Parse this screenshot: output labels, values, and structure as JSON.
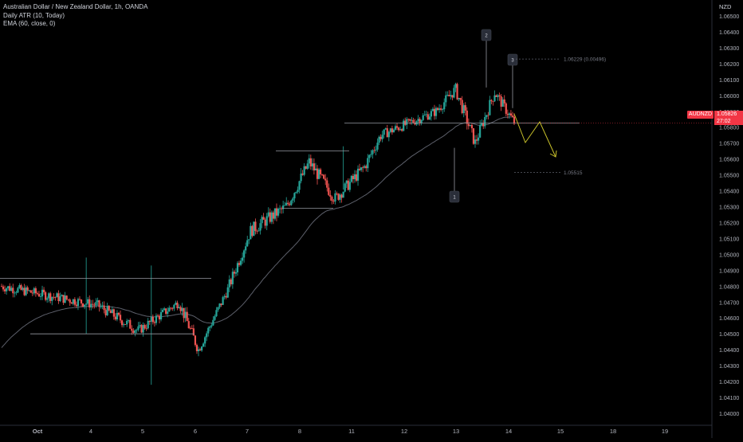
{
  "legend": {
    "title": "Australian Dollar / New Zealand Dollar, 1h, OANDA",
    "indicator_1": "Daily ATR (10, Today)",
    "indicator_2": "EMA (60, close, 0)"
  },
  "price_axis": {
    "currency": "NZD",
    "symbol": "AUDNZD",
    "last_price": "1.05826",
    "countdown": "27:02"
  },
  "annotations": {
    "target_high": "1.06229 (0.00496)",
    "target_low": "1.05515",
    "wave_labels": [
      "1",
      "2",
      "3"
    ]
  },
  "colors": {
    "bull": "#26a69a",
    "bear": "#ef5350",
    "ema": "#5d606b",
    "projection": "#c8c12a",
    "badge": "#f23645",
    "background": "#000000"
  },
  "chart_data": {
    "type": "candlestick",
    "title": "Australian Dollar / New Zealand Dollar, 1h, OANDA",
    "y_ticks": [
      "1.06500",
      "1.06400",
      "1.06300",
      "1.06200",
      "1.06100",
      "1.06000",
      "1.05900",
      "1.05800",
      "1.05700",
      "1.05600",
      "1.05500",
      "1.05400",
      "1.05300",
      "1.05200",
      "1.05100",
      "1.05000",
      "1.04900",
      "1.04800",
      "1.04700",
      "1.04600",
      "1.04500",
      "1.04400",
      "1.04300",
      "1.04200",
      "1.04100",
      "1.04000"
    ],
    "ylim": [
      1.0396,
      1.0655
    ],
    "x_ticks": [
      "Oct",
      "4",
      "5",
      "6",
      "7",
      "8",
      "11",
      "12",
      "13",
      "14",
      "15",
      "18",
      "19"
    ],
    "last_price": 1.05826,
    "ranges": [
      {
        "name": "range-1",
        "high": 1.0485,
        "low": 1.045
      },
      {
        "name": "range-2",
        "high": 1.0565,
        "low": 1.0529
      },
      {
        "name": "range-3",
        "level": 1.05826
      }
    ],
    "waves": [
      {
        "label": "1",
        "price": 1.0567
      },
      {
        "label": "2",
        "price": 1.0605
      },
      {
        "label": "3",
        "price": 1.0592
      }
    ],
    "targets": [
      1.06229,
      1.05515
    ],
    "series": [
      {
        "kind": "segment",
        "start": 1.048,
        "end": 1.0468,
        "bars": 60,
        "vol": 0.00045
      },
      {
        "kind": "segment",
        "start": 1.0468,
        "end": 1.0452,
        "bars": 25,
        "vol": 0.0005
      },
      {
        "kind": "segment",
        "start": 1.0452,
        "end": 1.047,
        "bars": 25,
        "vol": 0.00045
      },
      {
        "kind": "segment",
        "start": 1.047,
        "end": 1.044,
        "bars": 12,
        "vol": 0.00055
      },
      {
        "kind": "segment",
        "start": 1.044,
        "end": 1.0478,
        "bars": 18,
        "vol": 0.00045
      },
      {
        "kind": "segment",
        "start": 1.0478,
        "end": 1.0515,
        "bars": 14,
        "vol": 0.00055
      },
      {
        "kind": "segment",
        "start": 1.0515,
        "end": 1.053,
        "bars": 22,
        "vol": 0.0006
      },
      {
        "kind": "segment",
        "start": 1.053,
        "end": 1.0558,
        "bars": 14,
        "vol": 0.0006
      },
      {
        "kind": "segment",
        "start": 1.0558,
        "end": 1.0535,
        "bars": 16,
        "vol": 0.0006
      },
      {
        "kind": "segment",
        "start": 1.0535,
        "end": 1.0555,
        "bars": 18,
        "vol": 0.00055
      },
      {
        "kind": "segment",
        "start": 1.0555,
        "end": 1.0575,
        "bars": 10,
        "vol": 0.00055
      },
      {
        "kind": "segment",
        "start": 1.0575,
        "end": 1.059,
        "bars": 34,
        "vol": 0.00045
      },
      {
        "kind": "segment",
        "start": 1.059,
        "end": 1.0604,
        "bars": 12,
        "vol": 0.0005
      },
      {
        "kind": "segment",
        "start": 1.0604,
        "end": 1.057,
        "bars": 12,
        "vol": 0.0006
      },
      {
        "kind": "segment",
        "start": 1.057,
        "end": 1.0602,
        "bars": 12,
        "vol": 0.00055
      },
      {
        "kind": "segment",
        "start": 1.0602,
        "end": 1.0583,
        "bars": 12,
        "vol": 0.0005
      }
    ]
  }
}
